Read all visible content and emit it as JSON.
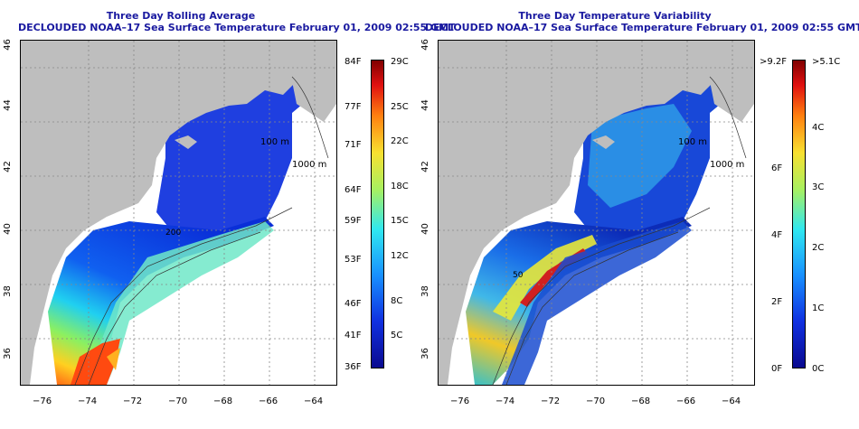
{
  "panels": [
    {
      "title_line1": "Three Day Rolling Average",
      "title_line2": "DECLOUDED NOAA–17 Sea Surface Temperature February 01, 2009 02:55 GMT"
    },
    {
      "title_line1": "Three Day Temperature Variability",
      "title_line2": "DECLOUDED NOAA–17 Sea Surface Temperature February 01, 2009 02:55 GMT"
    }
  ],
  "lat_labels": [
    "46",
    "44",
    "42",
    "40",
    "38",
    "36"
  ],
  "lon_labels": [
    "−76",
    "−74",
    "−72",
    "−70",
    "−68",
    "−66",
    "−64"
  ],
  "contour_labels": {
    "c100": "100 m",
    "c1000": "1000 m",
    "c200": "200",
    "c50": "50"
  },
  "colorbar_avg": {
    "left_labels": [
      "84F",
      "77F",
      "71F",
      "64F",
      "59F",
      "53F",
      "46F",
      "41F",
      "36F"
    ],
    "right_labels": [
      "29C",
      "25C",
      "22C",
      "18C",
      "15C",
      "12C",
      "8C",
      "5C"
    ]
  },
  "colorbar_var": {
    "left_labels": [
      ">9.2F",
      "6F",
      "4F",
      "2F",
      "0F"
    ],
    "right_labels": [
      ">5.1C",
      "4C",
      "3C",
      "2C",
      "1C",
      "0C"
    ]
  },
  "colors": {
    "land": "#bebebe",
    "title": "#1a1aa0",
    "ocean_nodata": "#ffffff"
  }
}
